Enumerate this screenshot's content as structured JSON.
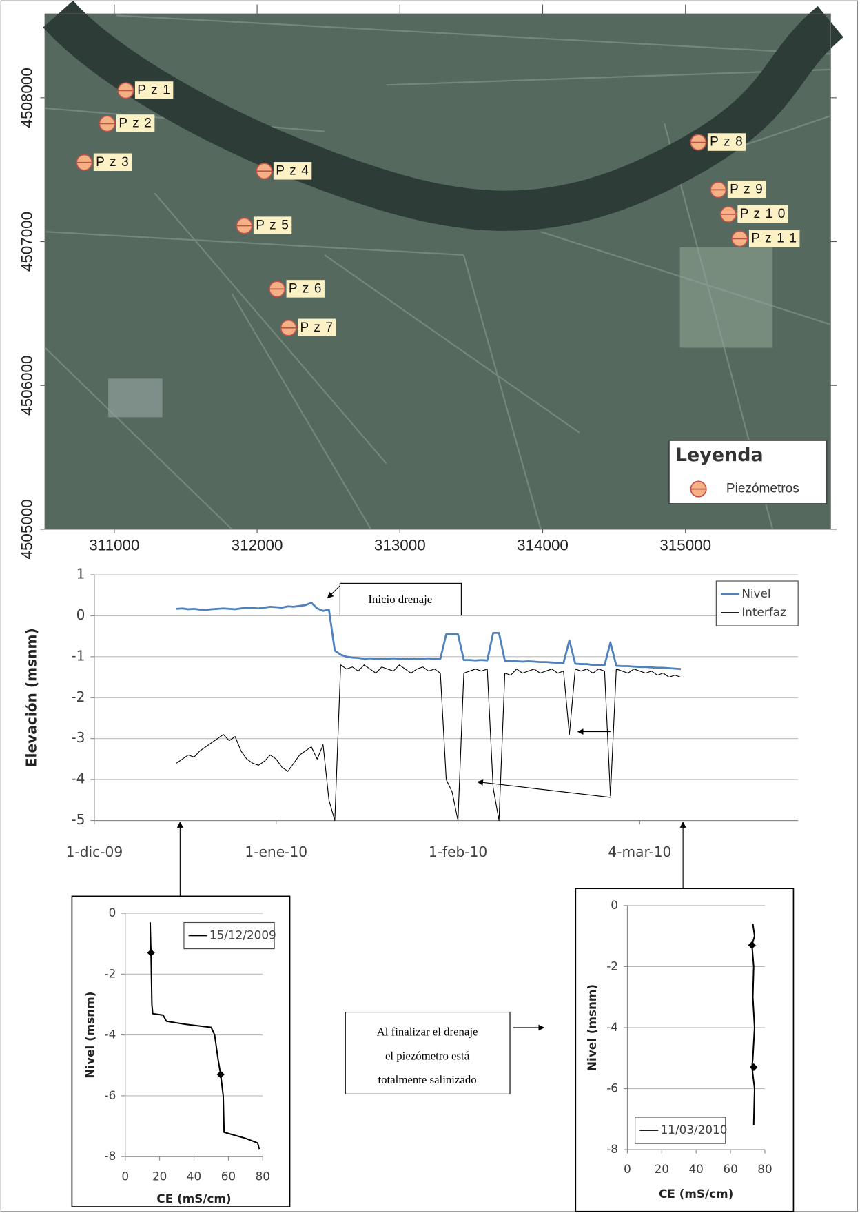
{
  "chart_data": [
    {
      "type": "scatter",
      "xlim": [
        310514,
        316016
      ],
      "ylim": [
        4505000,
        4508583
      ],
      "xticks": [
        311000,
        312000,
        313000,
        314000,
        315000
      ],
      "yticks": [
        4505000,
        4506000,
        4507000,
        4508000
      ],
      "legend_title": "Leyenda",
      "legend": "lower right",
      "series": [
        {
          "name": "Piezómetros",
          "color": "#f4b183",
          "x": [
            311080,
            310950,
            310790,
            312050,
            311910,
            312140,
            312220,
            315090,
            315230,
            315300,
            315380
          ],
          "values": [
            4508050,
            4507820,
            4507550,
            4507490,
            4507110,
            4506670,
            4506400,
            4507690,
            4507360,
            4507190,
            4507020
          ],
          "point_labels": [
            "P z 1",
            "P z 2",
            "P z 3",
            "P z 4",
            "P z 5",
            "P z 6",
            "P z 7",
            "P z 8",
            "P z 9",
            "P z 1 0",
            "P z 1 1"
          ]
        }
      ]
    },
    {
      "type": "line",
      "ylabel": "Elevación (msnm)",
      "grid": true,
      "legend": "upper right",
      "xlim": [
        "2009-12-01",
        "2010-03-31"
      ],
      "ylim": [
        -5,
        1
      ],
      "xticks": [
        {
          "value": "2009-12-01",
          "label": "1-dic-09"
        },
        {
          "value": "2010-01-01",
          "label": "1-ene-10"
        },
        {
          "value": "2010-02-01",
          "label": "1-feb-10"
        },
        {
          "value": "2010-03-04",
          "label": "4-mar-10"
        }
      ],
      "yticks": [
        -5,
        -4,
        -3,
        -2,
        -1,
        0,
        1
      ],
      "x": [
        "2009-12-15",
        "2009-12-16",
        "2009-12-17",
        "2009-12-18",
        "2009-12-19",
        "2009-12-20",
        "2009-12-21",
        "2009-12-22",
        "2009-12-23",
        "2009-12-24",
        "2009-12-25",
        "2009-12-26",
        "2009-12-27",
        "2009-12-28",
        "2009-12-29",
        "2009-12-30",
        "2009-12-31",
        "2010-01-01",
        "2010-01-02",
        "2010-01-03",
        "2010-01-04",
        "2010-01-05",
        "2010-01-06",
        "2010-01-07",
        "2010-01-08",
        "2010-01-09",
        "2010-01-10",
        "2010-01-11",
        "2010-01-12",
        "2010-01-13",
        "2010-01-14",
        "2010-01-15",
        "2010-01-16",
        "2010-01-17",
        "2010-01-18",
        "2010-01-19",
        "2010-01-20",
        "2010-01-21",
        "2010-01-22",
        "2010-01-23",
        "2010-01-24",
        "2010-01-25",
        "2010-01-26",
        "2010-01-27",
        "2010-01-28",
        "2010-01-29",
        "2010-01-30",
        "2010-01-31",
        "2010-02-01",
        "2010-02-02",
        "2010-02-03",
        "2010-02-04",
        "2010-02-05",
        "2010-02-06",
        "2010-02-07",
        "2010-02-08",
        "2010-02-09",
        "2010-02-10",
        "2010-02-11",
        "2010-02-12",
        "2010-02-13",
        "2010-02-14",
        "2010-02-15",
        "2010-02-16",
        "2010-02-17",
        "2010-02-18",
        "2010-02-19",
        "2010-02-20",
        "2010-02-21",
        "2010-02-22",
        "2010-02-23",
        "2010-02-24",
        "2010-02-25",
        "2010-02-26",
        "2010-02-27",
        "2010-02-28",
        "2010-03-01",
        "2010-03-02",
        "2010-03-03",
        "2010-03-04",
        "2010-03-05",
        "2010-03-06",
        "2010-03-07",
        "2010-03-08",
        "2010-03-09",
        "2010-03-10",
        "2010-03-11"
      ],
      "series": [
        {
          "name": "Nivel",
          "color": "#4f81bd",
          "values": [
            0.17,
            0.18,
            0.16,
            0.17,
            0.15,
            0.14,
            0.16,
            0.17,
            0.18,
            0.17,
            0.16,
            0.18,
            0.2,
            0.19,
            0.18,
            0.2,
            0.22,
            0.21,
            0.2,
            0.23,
            0.22,
            0.24,
            0.26,
            0.32,
            0.18,
            0.12,
            0.15,
            -0.85,
            -0.95,
            -1.0,
            -1.02,
            -1.03,
            -1.05,
            -1.04,
            -1.05,
            -1.06,
            -1.05,
            -1.04,
            -1.05,
            -1.06,
            -1.05,
            -1.06,
            -1.05,
            -1.04,
            -1.06,
            -1.05,
            -0.45,
            -0.45,
            -0.45,
            -1.08,
            -1.08,
            -1.09,
            -1.08,
            -1.09,
            -0.42,
            -0.42,
            -1.1,
            -1.1,
            -1.11,
            -1.12,
            -1.11,
            -1.12,
            -1.13,
            -1.13,
            -1.14,
            -1.15,
            -1.15,
            -0.6,
            -1.17,
            -1.18,
            -1.18,
            -1.2,
            -1.2,
            -1.21,
            -0.65,
            -1.22,
            -1.23,
            -1.23,
            -1.24,
            -1.25,
            -1.25,
            -1.26,
            -1.27,
            -1.27,
            -1.28,
            -1.29,
            -1.3
          ]
        },
        {
          "name": "Interfaz",
          "color": "#000000",
          "values": [
            -3.6,
            -3.5,
            -3.4,
            -3.45,
            -3.3,
            -3.2,
            -3.1,
            -3.0,
            -2.9,
            -3.05,
            -2.95,
            -3.3,
            -3.5,
            -3.6,
            -3.65,
            -3.55,
            -3.4,
            -3.5,
            -3.7,
            -3.8,
            -3.6,
            -3.4,
            -3.3,
            -3.2,
            -3.5,
            -3.15,
            -4.5,
            -5.0,
            -1.2,
            -1.3,
            -1.25,
            -1.35,
            -1.2,
            -1.3,
            -1.4,
            -1.25,
            -1.3,
            -1.35,
            -1.2,
            -1.3,
            -1.4,
            -1.3,
            -1.25,
            -1.35,
            -1.3,
            -1.4,
            -4.0,
            -4.3,
            -5.0,
            -1.4,
            -1.35,
            -1.3,
            -1.35,
            -1.3,
            -4.2,
            -5.0,
            -1.4,
            -1.45,
            -1.3,
            -1.4,
            -1.35,
            -1.3,
            -1.4,
            -1.35,
            -1.3,
            -1.4,
            -1.35,
            -2.9,
            -1.3,
            -1.35,
            -1.3,
            -1.4,
            -1.3,
            -1.35,
            -4.4,
            -1.3,
            -1.35,
            -1.4,
            -1.3,
            -1.35,
            -1.4,
            -1.35,
            -1.45,
            -1.4,
            -1.5,
            -1.45,
            -1.5
          ]
        }
      ],
      "annotations": {
        "start": "Inicio drenaje",
        "note": [
          "Al finalizar el drenaje",
          "el piezómetro está",
          "totalmente salinizado"
        ]
      }
    },
    {
      "type": "line",
      "xlabel": "CE (mS/cm)",
      "ylabel": "Nivel (msnm)",
      "grid": true,
      "legend": "upper right",
      "xlim": [
        0,
        80
      ],
      "ylim": [
        -8,
        0
      ],
      "xticks": [
        0,
        20,
        40,
        60,
        80
      ],
      "yticks": [
        0,
        -2,
        -4,
        -6,
        -8
      ],
      "series": [
        {
          "name": "15/12/2009",
          "color": "#000000",
          "x": [
            14.5,
            14.8,
            15,
            15.2,
            15.5,
            16,
            22,
            24,
            35,
            50,
            52,
            54,
            55.5,
            57,
            57.5,
            70,
            77,
            78
          ],
          "values": [
            -0.3,
            -1.0,
            -1.3,
            -2.0,
            -3.0,
            -3.3,
            -3.35,
            -3.55,
            -3.65,
            -3.75,
            -4.0,
            -4.8,
            -5.3,
            -6.0,
            -7.2,
            -7.4,
            -7.55,
            -7.75
          ],
          "marker_x": [
            15,
            55.5
          ],
          "marker_y": [
            -1.3,
            -5.3
          ]
        }
      ]
    },
    {
      "type": "line",
      "xlabel": "CE (mS/cm)",
      "ylabel": "Nivel (msnm)",
      "grid": true,
      "legend": "lower left",
      "xlim": [
        0,
        80
      ],
      "ylim": [
        -8,
        0
      ],
      "xticks": [
        0,
        20,
        40,
        60,
        80
      ],
      "yticks": [
        0,
        -2,
        -4,
        -6,
        -8
      ],
      "series": [
        {
          "name": "11/03/2010",
          "color": "#000000",
          "x": [
            73,
            74,
            72.5,
            73.5,
            73,
            74,
            73,
            72.5,
            74,
            73.5
          ],
          "values": [
            -0.6,
            -1.0,
            -1.3,
            -2.0,
            -3.0,
            -4.0,
            -5.0,
            -5.3,
            -6.0,
            -7.2
          ],
          "marker_x": [
            72.5,
            73.5
          ],
          "marker_y": [
            -1.3,
            -5.3
          ]
        }
      ]
    }
  ]
}
